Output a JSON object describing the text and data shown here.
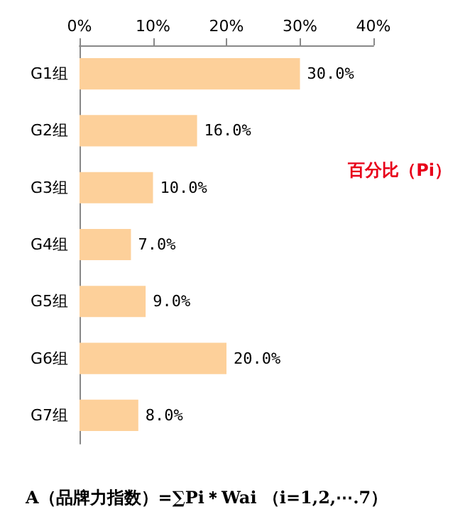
{
  "chart_data": {
    "type": "bar",
    "orientation": "horizontal",
    "categories": [
      "G1组",
      "G2组",
      "G3组",
      "G4组",
      "G5组",
      "G6组",
      "G7组"
    ],
    "series": [
      {
        "name": "百分比（Pi）",
        "color": "#fdd09a",
        "values": [
          30,
          16,
          10,
          7,
          9,
          20,
          8
        ],
        "value_labels": [
          "30.0%",
          "16.0%",
          "10.0%",
          "7.0%",
          "9.0%",
          "20.0%",
          "8.0%"
        ]
      }
    ],
    "xlim": [
      0,
      40
    ],
    "xticks": [
      {
        "value": 0,
        "label": "0%"
      },
      {
        "value": 10,
        "label": "10%"
      },
      {
        "value": 20,
        "label": "20%"
      },
      {
        "value": 30,
        "label": "30%"
      },
      {
        "value": 40,
        "label": "40%"
      }
    ],
    "grid": false,
    "legend": "right",
    "annotations": [
      "A（品牌力指数）=∑Pi＊Wai （i=1,2,⋯.7）"
    ]
  }
}
